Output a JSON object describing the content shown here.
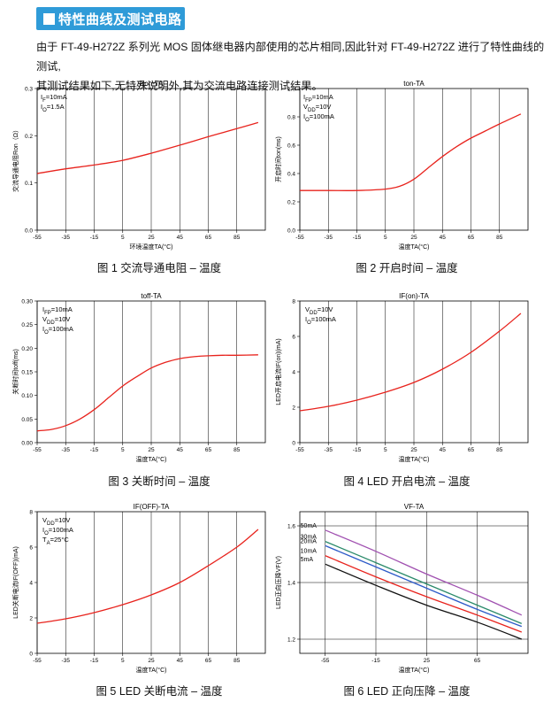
{
  "header": {
    "title": "特性曲线及测试电路"
  },
  "intro": {
    "line1": "由于 FT-49-H272Z 系列光 MOS 固体继电器内部使用的芯片相同,因此针对 FT-49-H272Z 进行了特性曲线的测试,",
    "line2": "其测试结果如下,无特殊说明外,其为交流电路连接测试结果。"
  },
  "colors": {
    "header_bg": "#2f9bd8",
    "curve": "#e8231d",
    "grid": "#000000"
  },
  "chart_data": [
    {
      "type": "line",
      "title": "Ron-TA",
      "title_main": "R",
      "title_sub": "on",
      "title_tail": "-T",
      "title_sub2": "A",
      "xlabel": "环境温度TA(°C)",
      "ylabel": "交流导通电阻Ron（Ω）",
      "xlim": [
        -55,
        105
      ],
      "ylim": [
        0,
        0.3
      ],
      "xticks": [
        -55,
        -35,
        -15,
        5,
        25,
        45,
        65,
        85
      ],
      "yticks": [
        0,
        0.1,
        0.2,
        0.3
      ],
      "ytick_labels": [
        "0.0",
        "0.1",
        "0.2",
        "0.3"
      ],
      "grid": "vertical",
      "annotations": [
        "IF=10mA",
        "IO=1.5A"
      ],
      "x": [
        -55,
        -35,
        -15,
        5,
        25,
        45,
        65,
        85,
        100
      ],
      "series": [
        {
          "values": [
            0.12,
            0.13,
            0.138,
            0.148,
            0.163,
            0.18,
            0.198,
            0.215,
            0.228
          ]
        }
      ],
      "caption": "图 1 交流导通电阻 – 温度"
    },
    {
      "type": "line",
      "title": "ton-TA",
      "xlabel": "温度TA(°C)",
      "ylabel": "开启时间ton(ms)",
      "xlim": [
        -55,
        105
      ],
      "ylim": [
        0,
        1.0
      ],
      "xticks": [
        -55,
        -35,
        -15,
        5,
        25,
        45,
        65,
        85
      ],
      "yticks": [
        0,
        0.2,
        0.4,
        0.6,
        0.8,
        1.0
      ],
      "ytick_labels": [
        "0.0",
        "0.2",
        "0.4",
        "0.6",
        "0.8",
        "1.0"
      ],
      "grid": "vertical",
      "annotations": [
        "IFP=10mA",
        "VDD=10V",
        "IO=100mA"
      ],
      "x": [
        -55,
        -35,
        -15,
        5,
        15,
        25,
        35,
        45,
        55,
        65,
        75,
        85,
        100
      ],
      "series": [
        {
          "values": [
            0.28,
            0.28,
            0.28,
            0.29,
            0.31,
            0.36,
            0.44,
            0.52,
            0.59,
            0.65,
            0.7,
            0.75,
            0.82
          ]
        }
      ],
      "caption": "图 2 开启时间 – 温度"
    },
    {
      "type": "line",
      "title": "toff-TA",
      "xlabel": "温度TA(°C)",
      "ylabel": "关断时间toff(ms)",
      "xlim": [
        -55,
        105
      ],
      "ylim": [
        0,
        0.3
      ],
      "xticks": [
        -55,
        -35,
        -15,
        5,
        25,
        45,
        65,
        85
      ],
      "yticks": [
        0,
        0.05,
        0.1,
        0.15,
        0.2,
        0.25,
        0.3
      ],
      "ytick_labels": [
        "0.00",
        "0.05",
        "0.10",
        "0.15",
        "0.20",
        "0.25",
        "0.30"
      ],
      "grid": "vertical",
      "annotations": [
        "IFP=10mA",
        "VDD=10V",
        "IO=100mA"
      ],
      "x": [
        -55,
        -45,
        -35,
        -25,
        -15,
        -5,
        5,
        15,
        25,
        35,
        45,
        55,
        65,
        75,
        85,
        100
      ],
      "series": [
        {
          "values": [
            0.025,
            0.028,
            0.036,
            0.05,
            0.07,
            0.095,
            0.12,
            0.14,
            0.158,
            0.17,
            0.178,
            0.182,
            0.184,
            0.185,
            0.185,
            0.186
          ]
        }
      ],
      "caption": "图 3 关断时间 – 温度"
    },
    {
      "type": "line",
      "title": "IF(on)-TA",
      "xlabel": "温度TA(°C)",
      "ylabel": "LED开启电流IF(on)(mA)",
      "xlim": [
        -55,
        105
      ],
      "ylim": [
        0,
        8
      ],
      "xticks": [
        -55,
        -35,
        -15,
        5,
        25,
        45,
        65,
        85
      ],
      "yticks": [
        0,
        2,
        4,
        6,
        8
      ],
      "ytick_labels": [
        "0",
        "2",
        "4",
        "6",
        "8"
      ],
      "grid": "vertical",
      "annotations": [
        "VDD=10V",
        "IO=100mA"
      ],
      "x": [
        -55,
        -35,
        -15,
        5,
        25,
        45,
        65,
        85,
        100
      ],
      "series": [
        {
          "values": [
            1.8,
            2.05,
            2.4,
            2.85,
            3.4,
            4.15,
            5.1,
            6.3,
            7.3
          ]
        }
      ],
      "caption": "图 4 LED 开启电流 – 温度"
    },
    {
      "type": "line",
      "title": "IF(OFF)-TA",
      "xlabel": "温度TA(°C)",
      "ylabel": "LED关断电流IF(OFF)(mA)",
      "xlim": [
        -55,
        105
      ],
      "ylim": [
        0,
        8
      ],
      "xticks": [
        -55,
        -35,
        -15,
        5,
        25,
        45,
        65,
        85
      ],
      "yticks": [
        0,
        2,
        4,
        6,
        8
      ],
      "ytick_labels": [
        "0",
        "2",
        "4",
        "6",
        "8"
      ],
      "grid": "vertical",
      "annotations": [
        "VDD=10V",
        "IO=100mA",
        "TA=25°C"
      ],
      "x": [
        -55,
        -35,
        -15,
        5,
        25,
        45,
        65,
        85,
        100
      ],
      "series": [
        {
          "values": [
            1.7,
            1.95,
            2.3,
            2.75,
            3.3,
            4.0,
            4.95,
            6.0,
            7.0
          ]
        }
      ],
      "caption": "图 5 LED 关断电流 – 温度"
    },
    {
      "type": "line",
      "title": "VF-TA",
      "xlabel": "温度TA(°C)",
      "ylabel": "LED正向压降VF(V)",
      "xlim": [
        -75,
        105
      ],
      "ylim": [
        1.15,
        1.65
      ],
      "xticks": [
        -55,
        -15,
        25,
        65
      ],
      "yticks": [
        1.2,
        1.4,
        1.6
      ],
      "ytick_labels": [
        "1.2",
        "1.4",
        "1.6"
      ],
      "grid": "both",
      "x": [
        -55,
        -15,
        25,
        65,
        100
      ],
      "series": [
        {
          "name": "50mA",
          "color": "#a050b0",
          "values": [
            1.585,
            1.51,
            1.43,
            1.355,
            1.285
          ]
        },
        {
          "name": "30mA",
          "color": "#2a8a6a",
          "values": [
            1.545,
            1.47,
            1.395,
            1.32,
            1.255
          ]
        },
        {
          "name": "20mA",
          "color": "#2c5ac8",
          "values": [
            1.53,
            1.455,
            1.38,
            1.305,
            1.245
          ]
        },
        {
          "name": "10mA",
          "color": "#e8231d",
          "values": [
            1.495,
            1.42,
            1.35,
            1.285,
            1.225
          ]
        },
        {
          "name": "5mA",
          "color": "#111111",
          "values": [
            1.465,
            1.39,
            1.32,
            1.26,
            1.2
          ]
        }
      ],
      "caption": "图 6 LED 正向压降 – 温度"
    }
  ]
}
